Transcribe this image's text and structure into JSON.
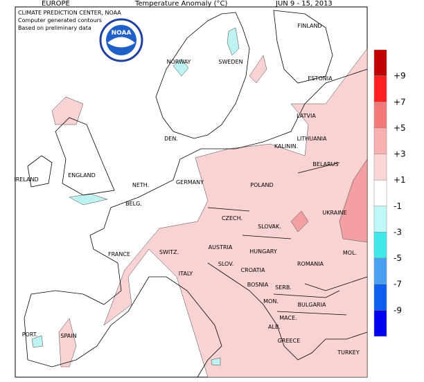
{
  "header": {
    "region": "EUROPE",
    "title": "Temperature Anomaly (°C)",
    "period": "JUN 9 - 15, 2013"
  },
  "credits": [
    "CLIMATE PREDICTION CENTER, NOAA",
    "Computer generated contours",
    "Based on preliminary data"
  ],
  "logo": "NOAA",
  "countries": [
    "FINLAND",
    "NORWAY",
    "SWEDEN",
    "ESTONIA",
    "LATVIA",
    "LITHUANIA",
    "KALININ.",
    "DEN.",
    "BELARUS",
    "IRELAND",
    "ENGLAND",
    "NETH.",
    "GERMANY",
    "POLAND",
    "BELG.",
    "CZECH.",
    "SLOVAK.",
    "UKRAINE",
    "FRANCE",
    "SWITZ.",
    "AUSTRIA",
    "HUNGARY",
    "MOL.",
    "ROMANIA",
    "SLOV.",
    "CROATIA",
    "ITALY",
    "BOSNIA",
    "SERB.",
    "MON.",
    "BULGARIA",
    "MACE.",
    "ALB.",
    "GREECE",
    "PORT.",
    "SPAIN",
    "TURKEY"
  ],
  "legend": {
    "colors": [
      "#c00000",
      "#ff2020",
      "#f47a7a",
      "#f9b0b0",
      "#fbd6d6",
      "#ffffff",
      "#c0f8f8",
      "#40e8e8",
      "#4aa0f0",
      "#1060f0",
      "#0000f0"
    ],
    "labels": [
      "+9",
      "+7",
      "+5",
      "+3",
      "+1",
      "-1",
      "-3",
      "-5",
      "-7",
      "-9"
    ]
  }
}
